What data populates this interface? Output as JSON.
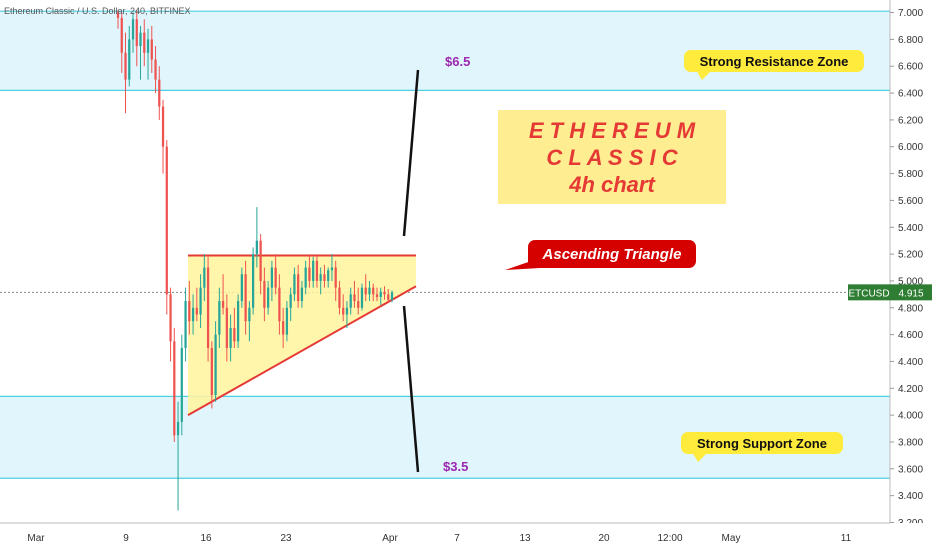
{
  "header": {
    "symbol_title": "Ethereum Classic / U.S. Dollar, 240, BITFINEX"
  },
  "chart_data": {
    "type": "candlestick",
    "title": "",
    "y_ticks": [
      "3.200",
      "3.400",
      "3.600",
      "3.800",
      "4.000",
      "4.200",
      "4.400",
      "4.600",
      "4.800",
      "5.000",
      "5.200",
      "5.400",
      "5.600",
      "5.800",
      "6.000",
      "6.200",
      "6.400",
      "6.600",
      "6.800",
      "7.000"
    ],
    "ylim": [
      3.2,
      7.0
    ],
    "x_ticks": [
      "Mar",
      "9",
      "16",
      "23",
      "Apr",
      "7",
      "13",
      "20",
      "12:00",
      "May",
      "11"
    ],
    "zones": [
      {
        "name": "resistance",
        "low": 6.42,
        "high": 7.01
      },
      {
        "name": "support",
        "low": 3.53,
        "high": 4.14
      }
    ],
    "candles": [
      {
        "o": 7.0,
        "h": 7.02,
        "l": 6.88,
        "c": 6.96
      },
      {
        "o": 6.96,
        "h": 7.0,
        "l": 6.55,
        "c": 6.7
      },
      {
        "o": 6.7,
        "h": 6.85,
        "l": 6.25,
        "c": 6.5
      },
      {
        "o": 6.5,
        "h": 6.9,
        "l": 6.45,
        "c": 6.8
      },
      {
        "o": 6.8,
        "h": 7.0,
        "l": 6.7,
        "c": 6.95
      },
      {
        "o": 6.95,
        "h": 7.02,
        "l": 6.6,
        "c": 6.75
      },
      {
        "o": 6.75,
        "h": 6.9,
        "l": 6.5,
        "c": 6.85
      },
      {
        "o": 6.85,
        "h": 6.95,
        "l": 6.6,
        "c": 6.7
      },
      {
        "o": 6.7,
        "h": 6.88,
        "l": 6.5,
        "c": 6.8
      },
      {
        "o": 6.8,
        "h": 6.9,
        "l": 6.55,
        "c": 6.65
      },
      {
        "o": 6.65,
        "h": 6.75,
        "l": 6.4,
        "c": 6.5
      },
      {
        "o": 6.5,
        "h": 6.6,
        "l": 6.2,
        "c": 6.3
      },
      {
        "o": 6.3,
        "h": 6.35,
        "l": 5.8,
        "c": 6.0
      },
      {
        "o": 6.0,
        "h": 6.05,
        "l": 4.75,
        "c": 4.9
      },
      {
        "o": 4.9,
        "h": 4.95,
        "l": 4.4,
        "c": 4.55
      },
      {
        "o": 4.55,
        "h": 4.65,
        "l": 3.8,
        "c": 3.85
      },
      {
        "o": 3.85,
        "h": 4.1,
        "l": 3.29,
        "c": 3.95
      },
      {
        "o": 3.95,
        "h": 4.6,
        "l": 3.85,
        "c": 4.5
      },
      {
        "o": 4.5,
        "h": 4.95,
        "l": 4.4,
        "c": 4.85
      },
      {
        "o": 4.85,
        "h": 5.0,
        "l": 4.6,
        "c": 4.7
      },
      {
        "o": 4.7,
        "h": 4.9,
        "l": 4.6,
        "c": 4.8
      },
      {
        "o": 4.8,
        "h": 4.95,
        "l": 4.7,
        "c": 4.75
      },
      {
        "o": 4.75,
        "h": 5.05,
        "l": 4.65,
        "c": 4.95
      },
      {
        "o": 4.95,
        "h": 5.2,
        "l": 4.85,
        "c": 5.1
      },
      {
        "o": 5.1,
        "h": 5.18,
        "l": 4.4,
        "c": 4.5
      },
      {
        "o": 4.5,
        "h": 4.55,
        "l": 4.05,
        "c": 4.15
      },
      {
        "o": 4.15,
        "h": 4.7,
        "l": 4.1,
        "c": 4.6
      },
      {
        "o": 4.6,
        "h": 4.95,
        "l": 4.5,
        "c": 4.85
      },
      {
        "o": 4.85,
        "h": 5.05,
        "l": 4.75,
        "c": 4.8
      },
      {
        "o": 4.8,
        "h": 4.9,
        "l": 4.4,
        "c": 4.5
      },
      {
        "o": 4.5,
        "h": 4.75,
        "l": 4.4,
        "c": 4.65
      },
      {
        "o": 4.65,
        "h": 4.8,
        "l": 4.5,
        "c": 4.55
      },
      {
        "o": 4.55,
        "h": 4.9,
        "l": 4.5,
        "c": 4.85
      },
      {
        "o": 4.85,
        "h": 5.1,
        "l": 4.8,
        "c": 5.05
      },
      {
        "o": 5.05,
        "h": 5.15,
        "l": 4.6,
        "c": 4.7
      },
      {
        "o": 4.7,
        "h": 4.85,
        "l": 4.55,
        "c": 4.8
      },
      {
        "o": 4.8,
        "h": 5.25,
        "l": 4.75,
        "c": 5.2
      },
      {
        "o": 5.2,
        "h": 5.55,
        "l": 5.1,
        "c": 5.3
      },
      {
        "o": 5.3,
        "h": 5.35,
        "l": 4.9,
        "c": 5.0
      },
      {
        "o": 5.0,
        "h": 5.1,
        "l": 4.7,
        "c": 4.8
      },
      {
        "o": 4.8,
        "h": 5.0,
        "l": 4.75,
        "c": 4.95
      },
      {
        "o": 4.95,
        "h": 5.15,
        "l": 4.85,
        "c": 5.1
      },
      {
        "o": 5.1,
        "h": 5.2,
        "l": 4.9,
        "c": 4.95
      },
      {
        "o": 4.95,
        "h": 5.05,
        "l": 4.6,
        "c": 4.7
      },
      {
        "o": 4.7,
        "h": 4.8,
        "l": 4.5,
        "c": 4.6
      },
      {
        "o": 4.6,
        "h": 4.85,
        "l": 4.55,
        "c": 4.8
      },
      {
        "o": 4.8,
        "h": 4.95,
        "l": 4.7,
        "c": 4.9
      },
      {
        "o": 4.9,
        "h": 5.1,
        "l": 4.85,
        "c": 5.05
      },
      {
        "o": 5.05,
        "h": 5.12,
        "l": 4.8,
        "c": 4.85
      },
      {
        "o": 4.85,
        "h": 5.0,
        "l": 4.8,
        "c": 4.95
      },
      {
        "o": 4.95,
        "h": 5.15,
        "l": 4.9,
        "c": 5.1
      },
      {
        "o": 5.1,
        "h": 5.2,
        "l": 4.95,
        "c": 5.0
      },
      {
        "o": 5.0,
        "h": 5.18,
        "l": 4.95,
        "c": 5.15
      },
      {
        "o": 5.15,
        "h": 5.2,
        "l": 4.95,
        "c": 5.0
      },
      {
        "o": 5.0,
        "h": 5.1,
        "l": 4.9,
        "c": 5.05
      },
      {
        "o": 5.05,
        "h": 5.12,
        "l": 4.95,
        "c": 5.0
      },
      {
        "o": 5.0,
        "h": 5.1,
        "l": 4.95,
        "c": 5.08
      },
      {
        "o": 5.08,
        "h": 5.2,
        "l": 5.0,
        "c": 5.1
      },
      {
        "o": 5.1,
        "h": 5.15,
        "l": 4.85,
        "c": 4.95
      },
      {
        "o": 4.95,
        "h": 5.0,
        "l": 4.75,
        "c": 4.8
      },
      {
        "o": 4.8,
        "h": 4.9,
        "l": 4.7,
        "c": 4.75
      },
      {
        "o": 4.75,
        "h": 4.85,
        "l": 4.65,
        "c": 4.8
      },
      {
        "o": 4.8,
        "h": 4.95,
        "l": 4.75,
        "c": 4.9
      },
      {
        "o": 4.9,
        "h": 5.0,
        "l": 4.8,
        "c": 4.85
      },
      {
        "o": 4.85,
        "h": 4.95,
        "l": 4.75,
        "c": 4.8
      },
      {
        "o": 4.8,
        "h": 4.98,
        "l": 4.78,
        "c": 4.95
      },
      {
        "o": 4.95,
        "h": 5.05,
        "l": 4.85,
        "c": 4.9
      },
      {
        "o": 4.9,
        "h": 5.0,
        "l": 4.85,
        "c": 4.95
      },
      {
        "o": 4.95,
        "h": 4.98,
        "l": 4.85,
        "c": 4.9
      },
      {
        "o": 4.9,
        "h": 4.95,
        "l": 4.85,
        "c": 4.88
      },
      {
        "o": 4.88,
        "h": 4.95,
        "l": 4.82,
        "c": 4.92
      },
      {
        "o": 4.92,
        "h": 4.96,
        "l": 4.86,
        "c": 4.9
      },
      {
        "o": 4.9,
        "h": 4.94,
        "l": 4.84,
        "c": 4.86
      },
      {
        "o": 4.86,
        "h": 4.93,
        "l": 4.84,
        "c": 4.915
      }
    ],
    "annotations": {
      "target_up": "$6.5",
      "target_down": "$3.5",
      "resistance_label": "Strong Resistance Zone",
      "support_label": "Strong Support Zone",
      "pattern_label": "Ascending Triangle",
      "title_line1": "E T H E R E U M",
      "title_line2": "C L A S S I C",
      "title_line3": "4h chart"
    },
    "price_tag": {
      "symbol": "ETCUSD",
      "value": "4.915",
      "level": 4.915
    },
    "colors": {
      "up": "#26a69a",
      "down": "#ef5350",
      "zone": "#e1f5fc",
      "zone_line": "#4dd0e1",
      "triangle_fill": "#fff59d",
      "triangle_line": "#e53935",
      "label_yellow": "#ffeb3b",
      "label_red": "#d50000",
      "title_bg": "#ffee91",
      "title_text": "#e53935",
      "target_text": "#9c27b0",
      "price_tag": "#2e7d32"
    }
  }
}
